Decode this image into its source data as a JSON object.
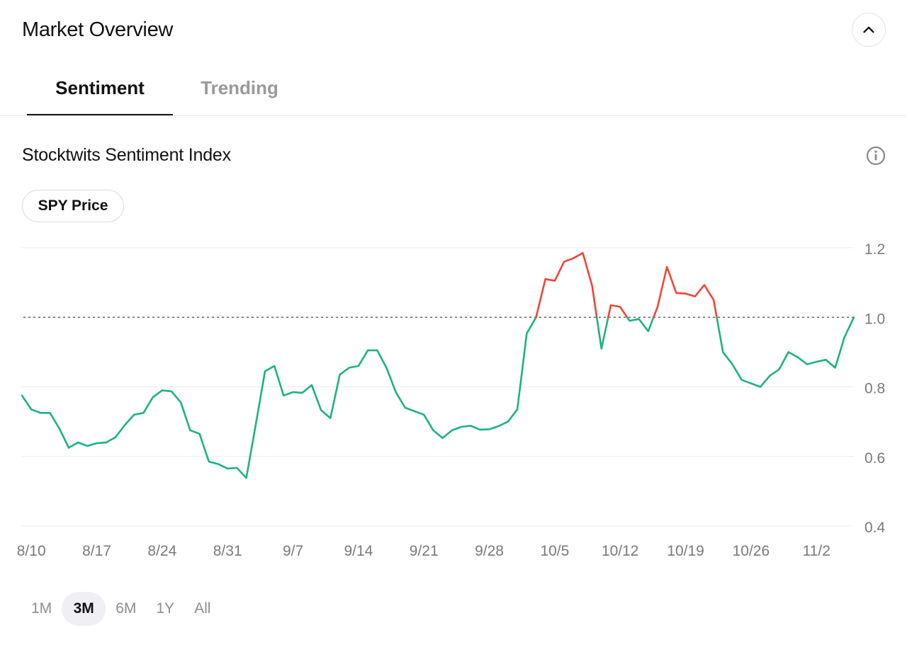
{
  "header": {
    "title": "Market Overview"
  },
  "tabs": [
    {
      "label": "Sentiment",
      "active": true
    },
    {
      "label": "Trending",
      "active": false
    }
  ],
  "section": {
    "title": "Stocktwits Sentiment Index"
  },
  "comparison_pill": {
    "label": "SPY Price"
  },
  "icons": {
    "collapse": "chevron-up-icon",
    "info": "info-icon"
  },
  "colors": {
    "above_baseline": "#f0443a",
    "below_baseline": "#1fb27e",
    "baseline": "#666666"
  },
  "range_options": [
    {
      "label": "1M",
      "selected": false
    },
    {
      "label": "3M",
      "selected": true
    },
    {
      "label": "6M",
      "selected": false
    },
    {
      "label": "1Y",
      "selected": false
    },
    {
      "label": "All",
      "selected": false
    }
  ],
  "chart_data": {
    "type": "line",
    "title": "",
    "xlabel": "",
    "ylabel": "",
    "ylim": [
      0.4,
      1.2
    ],
    "yticks": [
      "1.2",
      "1.0",
      "0.8",
      "0.6",
      "0.4"
    ],
    "baseline": 1.0,
    "xticks": [
      {
        "label": "8/10",
        "index": 1
      },
      {
        "label": "8/17",
        "index": 8
      },
      {
        "label": "8/24",
        "index": 15
      },
      {
        "label": "8/31",
        "index": 22
      },
      {
        "label": "9/7",
        "index": 29
      },
      {
        "label": "9/14",
        "index": 36
      },
      {
        "label": "9/21",
        "index": 43
      },
      {
        "label": "9/28",
        "index": 50
      },
      {
        "label": "10/5",
        "index": 57
      },
      {
        "label": "10/12",
        "index": 64
      },
      {
        "label": "10/19",
        "index": 71
      },
      {
        "label": "10/26",
        "index": 78
      },
      {
        "label": "11/2",
        "index": 85
      }
    ],
    "series": [
      {
        "values": [
          0.775,
          0.735,
          0.725,
          0.725,
          0.68,
          0.625,
          0.64,
          0.63,
          0.638,
          0.64,
          0.655,
          0.69,
          0.72,
          0.725,
          0.77,
          0.79,
          0.787,
          0.755,
          0.675,
          0.665,
          0.585,
          0.578,
          0.565,
          0.567,
          0.538,
          0.69,
          0.845,
          0.86,
          0.775,
          0.785,
          0.783,
          0.805,
          0.733,
          0.71,
          0.835,
          0.855,
          0.86,
          0.905,
          0.905,
          0.855,
          0.785,
          0.74,
          0.73,
          0.72,
          0.675,
          0.653,
          0.675,
          0.685,
          0.688,
          0.677,
          0.678,
          0.687,
          0.7,
          0.735,
          0.953,
          1.0,
          1.11,
          1.105,
          1.16,
          1.17,
          1.185,
          1.09,
          0.91,
          1.035,
          1.03,
          0.99,
          0.995,
          0.96,
          1.03,
          1.145,
          1.07,
          1.068,
          1.06,
          1.093,
          1.05,
          0.9,
          0.865,
          0.82,
          0.81,
          0.8,
          0.832,
          0.85,
          0.9,
          0.885,
          0.865,
          0.872,
          0.878,
          0.855,
          0.943,
          1.0
        ]
      }
    ]
  }
}
